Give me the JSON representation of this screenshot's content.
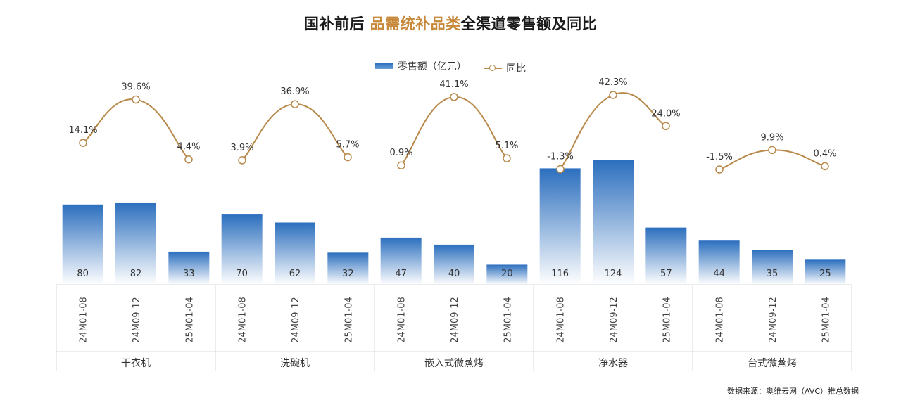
{
  "title": {
    "prefix": "国补前后 ",
    "highlight": "品需统补品类",
    "suffix": "全渠道零售额及同比"
  },
  "legend": {
    "bar_label": "零售额（亿元）",
    "line_label": "同比"
  },
  "source": "数据来源：奥维云网（AVC）推总数据",
  "colors": {
    "bar_top": "#2c6fbe",
    "bar_bottom": "#ffffff",
    "line": "#b8894a",
    "grid": "#d9d9d9"
  },
  "chart_data": {
    "type": "bar",
    "groups": [
      "干衣机",
      "洗碗机",
      "嵌入式微蒸烤",
      "净水器",
      "台式微蒸烤"
    ],
    "periods": [
      "24M01-08",
      "24M09-12",
      "25M01-04"
    ],
    "series": [
      {
        "name": "零售额（亿元）",
        "type": "bar",
        "values": [
          80,
          82,
          33,
          70,
          62,
          32,
          47,
          40,
          20,
          116,
          124,
          57,
          44,
          35,
          25
        ]
      },
      {
        "name": "同比",
        "type": "line",
        "values": [
          14.1,
          39.6,
          4.4,
          3.9,
          36.9,
          5.7,
          0.9,
          41.1,
          5.1,
          -1.3,
          42.3,
          24.0,
          -1.5,
          9.9,
          0.4
        ],
        "labels": [
          "14.1%",
          "39.6%",
          "4.4%",
          "3.9%",
          "36.9%",
          "5.7%",
          "0.9%",
          "41.1%",
          "5.1%",
          "-1.3%",
          "42.3%",
          "24.0%",
          "-1.5%",
          "9.9%",
          "0.4%"
        ]
      }
    ],
    "ylim": [
      0,
      124
    ],
    "legend_position": "top-center",
    "grid": false
  }
}
